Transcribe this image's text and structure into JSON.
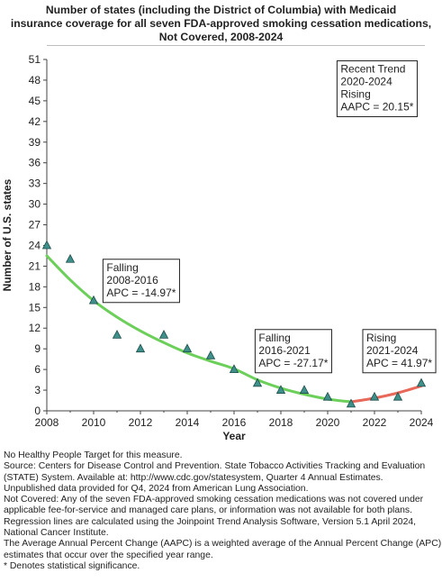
{
  "title_lines": [
    "Number of states (including the District of Columbia) with Medicaid",
    "insurance coverage for all seven FDA-approved smoking cessation medications,",
    "Not Covered,  2008-2024"
  ],
  "chart_data": {
    "type": "scatter",
    "title": "Number of states (including the District of Columbia) with Medicaid insurance coverage for all seven FDA-approved smoking cessation medications, Not Covered,  2008-2024",
    "xlabel": "Year",
    "ylabel": "Number of U.S. states",
    "xlim": [
      2008,
      2024
    ],
    "ylim": [
      0,
      51
    ],
    "x_ticks": [
      "2008",
      "2010",
      "2012",
      "2014",
      "2016",
      "2018",
      "2020",
      "2022",
      "2024"
    ],
    "y_ticks": [
      "0",
      "3",
      "6",
      "9",
      "12",
      "15",
      "18",
      "21",
      "24",
      "27",
      "30",
      "33",
      "36",
      "39",
      "42",
      "45",
      "48",
      "51"
    ],
    "grid": false,
    "series": [
      {
        "kind": "observed",
        "x": [
          2008,
          2009,
          2010,
          2011,
          2012,
          2013,
          2014,
          2015,
          2016,
          2017,
          2018,
          2019,
          2020,
          2021,
          2022,
          2023,
          2024
        ],
        "y": [
          24,
          22,
          16,
          11,
          9,
          11,
          9,
          8,
          6,
          4,
          3,
          3,
          2,
          1,
          2,
          2,
          4
        ],
        "color": "#3f8f8a"
      },
      {
        "kind": "trend",
        "color": "#6ccf5a",
        "x": [
          2008,
          2009,
          2010,
          2011,
          2012,
          2013,
          2014,
          2015,
          2016,
          2017,
          2018,
          2019,
          2020,
          2021
        ],
        "y": [
          22.5,
          19.0,
          16.0,
          13.6,
          11.6,
          9.9,
          8.4,
          7.2,
          6.1,
          4.5,
          3.3,
          2.4,
          1.7,
          1.3
        ]
      },
      {
        "kind": "trend",
        "color": "#e8685a",
        "x": [
          2021,
          2022,
          2023,
          2024
        ],
        "y": [
          1.3,
          1.85,
          2.6,
          3.6
        ]
      }
    ],
    "annotations": [
      {
        "lines": [
          "Recent Trend",
          "2020-2024",
          "Rising",
          "AAPC = 20.15*"
        ],
        "x": 2020.4,
        "y": 50.8
      },
      {
        "lines": [
          "Falling",
          "2008-2016",
          "APC = -14.97*"
        ],
        "x": 2010.4,
        "y": 22.0
      },
      {
        "lines": [
          "Falling",
          "2016-2021",
          "APC = -27.17*"
        ],
        "x": 2016.9,
        "y": 11.8
      },
      {
        "lines": [
          "Rising",
          "2021-2024",
          "APC = 41.97*"
        ],
        "x": 2021.5,
        "y": 11.8
      }
    ]
  },
  "notes": [
    "No Healthy People Target for this measure.",
    "Source: Centers for Disease Control and Prevention. State Tobacco Activities Tracking and Evaluation (STATE) System. Available at: http://www.cdc.gov/statesystem, Quarter 4 Annual Estimates.",
    "Unpublished data provided for Q4, 2024 from American Lung Association.",
    "Not Covered: Any of the seven FDA-approved smoking cessation medications was not covered under applicable fee-for-service and managed care plans, or information was not available for both plans.",
    "Regression lines are calculated using the Joinpoint Trend Analysis Software, Version 5.1 April 2024, National Cancer Institute.",
    "The Average Annual Percent Change (AAPC) is a weighted average of the Annual Percent Change (APC) estimates that occur over the specified year range.",
    "* Denotes statistical significance."
  ]
}
